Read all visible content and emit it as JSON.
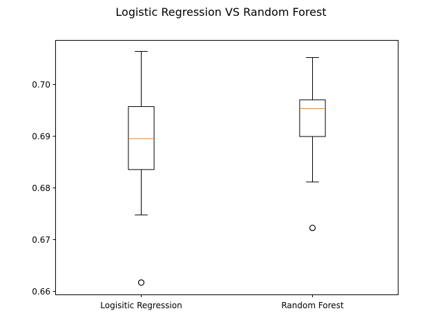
{
  "chart_data": {
    "type": "box",
    "title": "Logistic Regression VS Random Forest",
    "xlabel": "",
    "ylabel": "",
    "categories": [
      "Logisitic Regression",
      "Random Forest"
    ],
    "boxes": [
      {
        "category": "Logisitic Regression",
        "whisker_low": 0.6747,
        "q1": 0.6835,
        "median": 0.6895,
        "q3": 0.6957,
        "whisker_high": 0.7064,
        "outliers": [
          0.6616
        ]
      },
      {
        "category": "Random Forest",
        "whisker_low": 0.6811,
        "q1": 0.6899,
        "median": 0.6953,
        "q3": 0.697,
        "whisker_high": 0.7052,
        "outliers": [
          0.6722
        ]
      }
    ],
    "yticks": [
      0.66,
      0.67,
      0.68,
      0.69,
      0.7
    ],
    "ytick_labels": [
      "0.66",
      "0.67",
      "0.68",
      "0.69",
      "0.70"
    ],
    "ylim": [
      0.6593,
      0.7086
    ],
    "grid": false,
    "colors": {
      "box": "#000000",
      "median": "#ff7f0e",
      "outlier": "#000000"
    }
  }
}
